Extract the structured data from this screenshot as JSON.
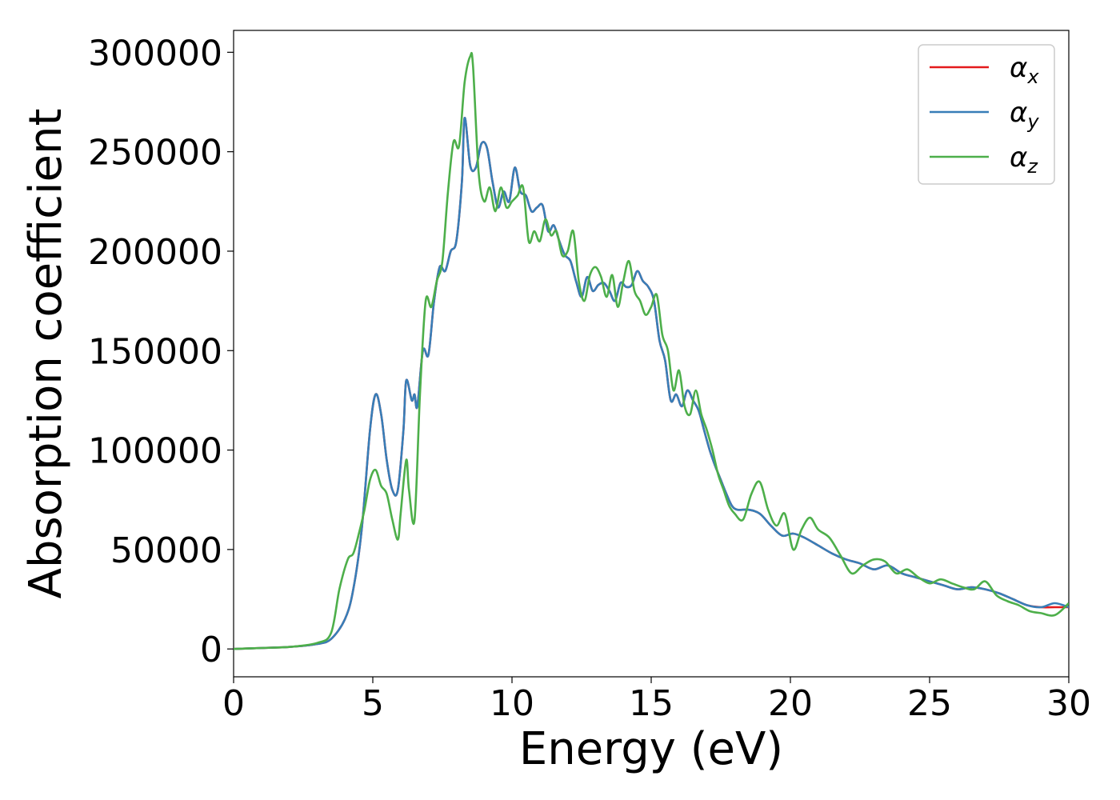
{
  "chart_data": {
    "type": "line",
    "title": "",
    "xlabel": "Energy (eV)",
    "ylabel": "Absorption coefficient",
    "xlim": [
      0,
      30
    ],
    "ylim": [
      -14000,
      311000
    ],
    "xticks": [
      0,
      5,
      10,
      15,
      20,
      25,
      30
    ],
    "yticks": [
      0,
      50000,
      100000,
      150000,
      200000,
      250000,
      300000
    ],
    "grid": false,
    "legend_position": "top-right",
    "series": [
      {
        "name": "α",
        "subscript": "x",
        "color": "#e41a1c",
        "x": [
          0,
          1,
          2,
          3,
          3.5,
          4.0,
          4.3,
          4.6,
          4.9,
          5.1,
          5.3,
          5.5,
          5.7,
          5.9,
          6.1,
          6.2,
          6.4,
          6.5,
          6.6,
          6.8,
          7.0,
          7.2,
          7.4,
          7.6,
          7.8,
          8.0,
          8.2,
          8.3,
          8.5,
          8.7,
          8.9,
          9.1,
          9.3,
          9.5,
          9.7,
          9.9,
          10.1,
          10.3,
          10.5,
          10.7,
          10.9,
          11.1,
          11.3,
          11.5,
          11.7,
          11.9,
          12.1,
          12.3,
          12.5,
          12.7,
          12.9,
          13.1,
          13.3,
          13.5,
          13.7,
          13.9,
          14.1,
          14.3,
          14.5,
          14.7,
          14.9,
          15.1,
          15.3,
          15.5,
          15.7,
          15.9,
          16.1,
          16.3,
          16.5,
          16.7,
          16.9,
          17.1,
          17.3,
          17.5,
          17.7,
          17.9,
          18.1,
          18.5,
          18.9,
          19.3,
          19.7,
          20.1,
          20.5,
          21.0,
          21.5,
          22.0,
          22.5,
          23.0,
          23.5,
          24.0,
          24.5,
          25.0,
          25.5,
          26.0,
          26.5,
          27.0,
          27.5,
          28.0,
          28.5,
          29.0,
          29.5,
          30.0
        ],
        "y": [
          0,
          500,
          1000,
          2500,
          5000,
          15000,
          30000,
          60000,
          110000,
          128000,
          118000,
          95000,
          80000,
          80000,
          110000,
          135000,
          125000,
          128000,
          122000,
          150000,
          148000,
          175000,
          192000,
          190000,
          200000,
          205000,
          235000,
          267000,
          243000,
          242000,
          254000,
          252000,
          235000,
          222000,
          230000,
          225000,
          242000,
          230000,
          228000,
          220000,
          222000,
          223000,
          210000,
          213000,
          205000,
          198000,
          195000,
          185000,
          177000,
          187000,
          180000,
          183000,
          184000,
          180000,
          175000,
          184000,
          182000,
          183000,
          190000,
          185000,
          182000,
          175000,
          155000,
          145000,
          125000,
          128000,
          122000,
          130000,
          125000,
          120000,
          110000,
          100000,
          92000,
          85000,
          78000,
          72000,
          70000,
          70000,
          68000,
          62000,
          57000,
          58000,
          56000,
          52000,
          48000,
          45000,
          43000,
          40000,
          42000,
          38000,
          36000,
          34000,
          32000,
          30000,
          31000,
          30000,
          28000,
          25000,
          22000,
          21000,
          21000,
          21000
        ]
      },
      {
        "name": "α",
        "subscript": "y",
        "color": "#377eb8",
        "x": [
          0,
          1,
          2,
          3,
          3.5,
          4.0,
          4.3,
          4.6,
          4.9,
          5.1,
          5.3,
          5.5,
          5.7,
          5.9,
          6.1,
          6.2,
          6.4,
          6.5,
          6.6,
          6.8,
          7.0,
          7.2,
          7.4,
          7.6,
          7.8,
          8.0,
          8.2,
          8.3,
          8.5,
          8.7,
          8.9,
          9.1,
          9.3,
          9.5,
          9.7,
          9.9,
          10.1,
          10.3,
          10.5,
          10.7,
          10.9,
          11.1,
          11.3,
          11.5,
          11.7,
          11.9,
          12.1,
          12.3,
          12.5,
          12.7,
          12.9,
          13.1,
          13.3,
          13.5,
          13.7,
          13.9,
          14.1,
          14.3,
          14.5,
          14.7,
          14.9,
          15.1,
          15.3,
          15.5,
          15.7,
          15.9,
          16.1,
          16.3,
          16.5,
          16.7,
          16.9,
          17.1,
          17.3,
          17.5,
          17.7,
          17.9,
          18.1,
          18.5,
          18.9,
          19.3,
          19.7,
          20.1,
          20.5,
          21.0,
          21.5,
          22.0,
          22.5,
          23.0,
          23.5,
          24.0,
          24.5,
          25.0,
          25.5,
          26.0,
          26.5,
          27.0,
          27.5,
          28.0,
          28.5,
          29.0,
          29.5,
          30.0
        ],
        "y": [
          0,
          500,
          1000,
          2500,
          5000,
          15000,
          30000,
          60000,
          110000,
          128000,
          118000,
          95000,
          80000,
          80000,
          110000,
          135000,
          125000,
          128000,
          122000,
          150000,
          148000,
          175000,
          192000,
          190000,
          200000,
          205000,
          235000,
          267000,
          243000,
          242000,
          254000,
          252000,
          235000,
          222000,
          230000,
          225000,
          242000,
          230000,
          228000,
          220000,
          222000,
          223000,
          210000,
          213000,
          205000,
          198000,
          195000,
          185000,
          177000,
          187000,
          180000,
          183000,
          184000,
          180000,
          175000,
          184000,
          182000,
          183000,
          190000,
          185000,
          182000,
          175000,
          155000,
          145000,
          125000,
          128000,
          122000,
          130000,
          125000,
          120000,
          110000,
          100000,
          92000,
          85000,
          78000,
          72000,
          70000,
          70000,
          68000,
          62000,
          57000,
          58000,
          56000,
          52000,
          48000,
          45000,
          43000,
          40000,
          42000,
          38000,
          36000,
          34000,
          32000,
          30000,
          31000,
          30000,
          28000,
          25000,
          22000,
          21000,
          23000,
          21000
        ]
      },
      {
        "name": "α",
        "subscript": "z",
        "color": "#4daf4a",
        "x": [
          0,
          1,
          2,
          3,
          3.5,
          3.8,
          4.1,
          4.3,
          4.5,
          4.7,
          4.9,
          5.1,
          5.3,
          5.5,
          5.7,
          5.9,
          6.0,
          6.2,
          6.3,
          6.5,
          6.7,
          6.9,
          7.1,
          7.3,
          7.5,
          7.7,
          7.9,
          8.1,
          8.3,
          8.5,
          8.6,
          8.8,
          9.0,
          9.2,
          9.4,
          9.6,
          9.8,
          10.0,
          10.2,
          10.4,
          10.6,
          10.8,
          11.0,
          11.2,
          11.4,
          11.6,
          11.8,
          12.0,
          12.2,
          12.4,
          12.6,
          12.8,
          13.0,
          13.2,
          13.4,
          13.6,
          13.8,
          14.0,
          14.2,
          14.4,
          14.6,
          14.8,
          15.0,
          15.2,
          15.4,
          15.6,
          15.8,
          16.0,
          16.2,
          16.4,
          16.6,
          16.8,
          17.0,
          17.2,
          17.4,
          17.6,
          17.8,
          18.0,
          18.3,
          18.6,
          18.9,
          19.2,
          19.5,
          19.8,
          20.1,
          20.4,
          20.7,
          21.0,
          21.4,
          21.8,
          22.2,
          22.6,
          23.0,
          23.4,
          23.8,
          24.2,
          24.6,
          25.0,
          25.4,
          25.8,
          26.2,
          26.6,
          27.0,
          27.4,
          27.8,
          28.2,
          28.6,
          29.0,
          29.5,
          30.0
        ],
        "y": [
          0,
          500,
          1000,
          3000,
          8000,
          30000,
          45000,
          48000,
          58000,
          70000,
          85000,
          90000,
          82000,
          78000,
          65000,
          55000,
          68000,
          95000,
          80000,
          65000,
          130000,
          175000,
          172000,
          185000,
          195000,
          230000,
          255000,
          253000,
          285000,
          298000,
          293000,
          240000,
          225000,
          232000,
          220000,
          232000,
          222000,
          225000,
          228000,
          232000,
          205000,
          210000,
          205000,
          216000,
          208000,
          210000,
          198000,
          200000,
          210000,
          185000,
          175000,
          188000,
          192000,
          187000,
          177000,
          188000,
          172000,
          185000,
          195000,
          180000,
          175000,
          168000,
          172000,
          178000,
          158000,
          150000,
          130000,
          140000,
          122000,
          118000,
          130000,
          118000,
          110000,
          100000,
          88000,
          80000,
          72000,
          68000,
          65000,
          78000,
          84000,
          70000,
          62000,
          68000,
          50000,
          60000,
          66000,
          60000,
          56000,
          47000,
          38000,
          42000,
          45000,
          44000,
          38000,
          40000,
          36000,
          33000,
          35000,
          33000,
          31000,
          30000,
          34000,
          27000,
          24000,
          22000,
          19000,
          18000,
          17000,
          23000
        ]
      }
    ]
  }
}
